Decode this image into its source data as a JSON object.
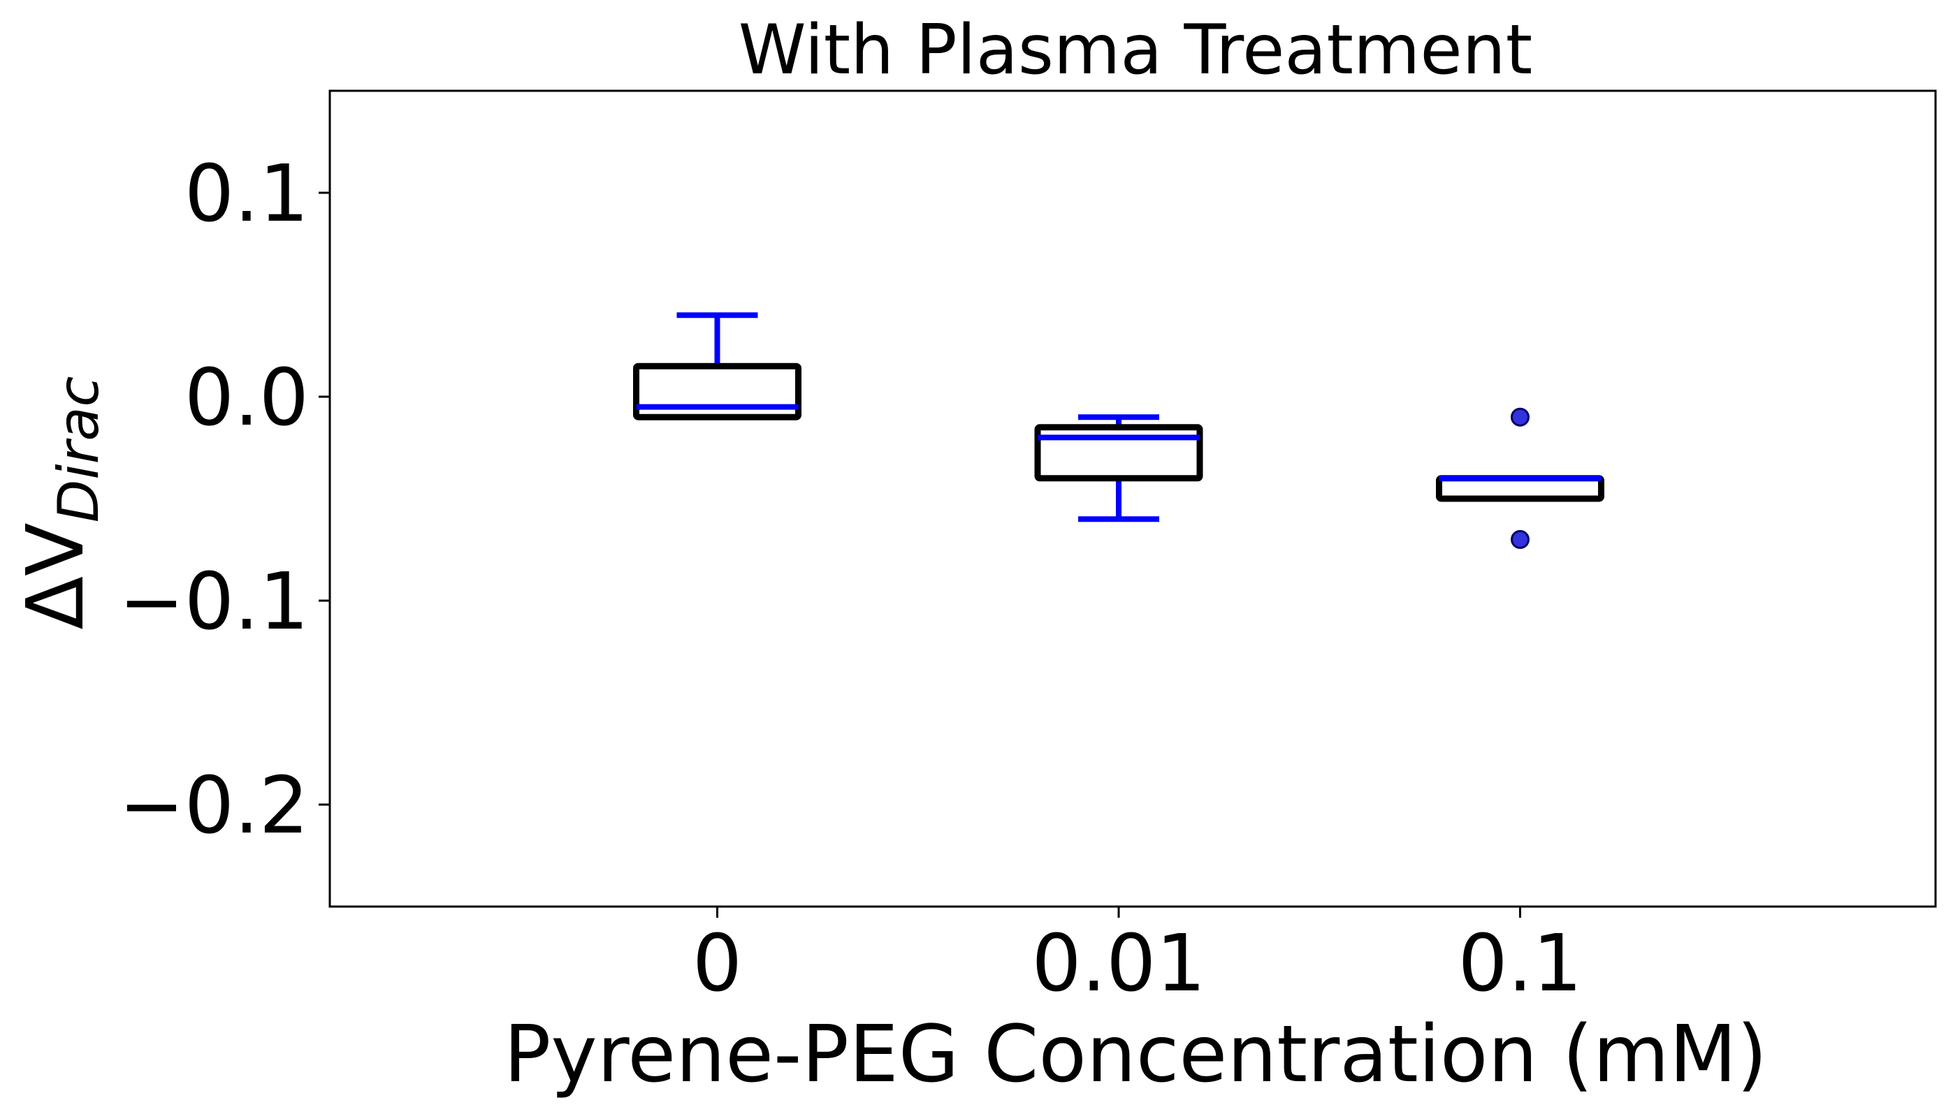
{
  "chart_data": {
    "type": "box",
    "title": "With Plasma Treatment",
    "xlabel": "Pyrene-PEG Concentration (mM)",
    "ylabel": {
      "main": "ΔV",
      "sub": "Dirac"
    },
    "categories": [
      "0",
      "0.01",
      "0.1"
    ],
    "ylim": [
      -0.25,
      0.15
    ],
    "yticks": [
      {
        "value": 0.1,
        "label": "0.1"
      },
      {
        "value": 0.0,
        "label": "0.0"
      },
      {
        "value": -0.1,
        "label": "−0.1"
      },
      {
        "value": -0.2,
        "label": "−0.2"
      }
    ],
    "boxes": [
      {
        "category": "0",
        "whisker_low": -0.01,
        "q1": -0.01,
        "median": -0.005,
        "q3": 0.015,
        "whisker_high": 0.04,
        "outliers": []
      },
      {
        "category": "0.01",
        "whisker_low": -0.06,
        "q1": -0.04,
        "median": -0.02,
        "q3": -0.015,
        "whisker_high": -0.01,
        "outliers": []
      },
      {
        "category": "0.1",
        "whisker_low": -0.05,
        "q1": -0.05,
        "median": -0.04,
        "q3": -0.04,
        "whisker_high": -0.04,
        "outliers": [
          -0.01,
          -0.07
        ]
      }
    ],
    "grid": false,
    "colors": {
      "box": "#000000",
      "whisker": "#0000ff",
      "median": "#0000ff",
      "outlier_fill": "#3333dd",
      "outlier_edge": "#000066"
    }
  }
}
